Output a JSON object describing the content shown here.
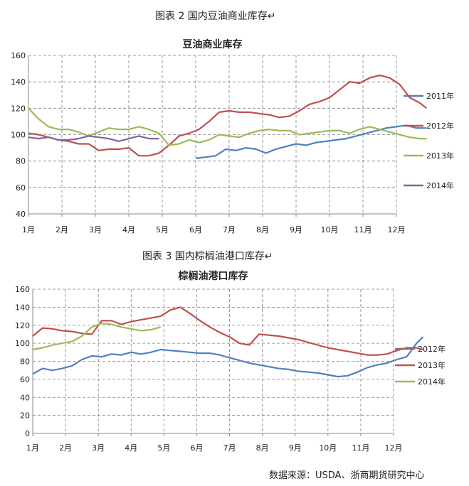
{
  "captions": {
    "figure2": "图表 2  国内豆油商业库存↵",
    "figure3": "图表 3  国内棕榈油港口库存↵",
    "source": "数据来源：USDA、浙商期货研究中心"
  },
  "colors": {
    "blue": "#4f81bd",
    "red": "#c0504d",
    "green": "#9bbb59",
    "purple": "#8064a2"
  },
  "chart_data": [
    {
      "type": "line",
      "title": "豆油商业库存",
      "categories": [
        "1月",
        "2月",
        "3月",
        "4月",
        "5月",
        "6月",
        "7月",
        "8月",
        "9月",
        "10月",
        "11月",
        "12月"
      ],
      "ylim": [
        40,
        160
      ],
      "yticks": [
        40,
        60,
        80,
        100,
        120,
        140,
        160
      ],
      "grid": true,
      "legend": "right",
      "series": [
        {
          "name": "2011年",
          "color": "#4f81bd",
          "x": [
            5.0,
            5.3,
            5.6,
            5.9,
            6.2,
            6.5,
            6.8,
            7.1,
            7.4,
            7.7,
            8.0,
            8.3,
            8.6,
            8.9,
            9.2,
            9.5,
            9.8,
            10.1,
            10.4,
            10.7,
            11.0,
            11.3,
            11.6,
            11.9
          ],
          "y": [
            82,
            83,
            84,
            89,
            88,
            90,
            89,
            86,
            89,
            91,
            93,
            92,
            94,
            95,
            96,
            97,
            99,
            101,
            103,
            105,
            106,
            107,
            105,
            105
          ]
        },
        {
          "name": "2012年",
          "color": "#c0504d",
          "x": [
            0.0,
            0.3,
            0.6,
            0.9,
            1.2,
            1.5,
            1.8,
            2.1,
            2.4,
            2.7,
            3.0,
            3.3,
            3.6,
            3.9,
            4.2,
            4.5,
            4.8,
            5.1,
            5.4,
            5.7,
            6.0,
            6.3,
            6.6,
            6.9,
            7.2,
            7.5,
            7.8,
            8.1,
            8.4,
            8.7,
            9.0,
            9.3,
            9.6,
            9.9,
            10.2,
            10.5,
            10.8,
            11.1,
            11.4,
            11.7,
            11.9
          ],
          "y": [
            101,
            100,
            98,
            96,
            95,
            93,
            93,
            88,
            89,
            89,
            90,
            84,
            84,
            86,
            92,
            99,
            101,
            104,
            110,
            117,
            118,
            117,
            117,
            116,
            115,
            113,
            114,
            118,
            123,
            125,
            128,
            134,
            140,
            139,
            143,
            145,
            143,
            138,
            128,
            124,
            120
          ]
        },
        {
          "name": "2013年",
          "color": "#9bbb59",
          "x": [
            0.0,
            0.3,
            0.6,
            0.9,
            1.2,
            1.5,
            1.8,
            2.1,
            2.4,
            2.7,
            3.0,
            3.3,
            3.6,
            3.9,
            4.2,
            4.5,
            4.8,
            5.1,
            5.4,
            5.7,
            6.0,
            6.3,
            6.6,
            6.9,
            7.2,
            7.5,
            7.8,
            8.1,
            8.4,
            8.7,
            9.0,
            9.3,
            9.6,
            9.9,
            10.2,
            10.5,
            10.8,
            11.1,
            11.4,
            11.7,
            11.9
          ],
          "y": [
            120,
            112,
            106,
            104,
            104,
            102,
            99,
            102,
            105,
            104,
            104,
            106,
            104,
            101,
            92,
            93,
            96,
            94,
            96,
            100,
            99,
            98,
            101,
            103,
            104,
            103,
            103,
            100,
            101,
            102,
            103,
            103,
            101,
            104,
            106,
            104,
            102,
            100,
            98,
            97,
            97
          ]
        },
        {
          "name": "2014年",
          "color": "#8064a2",
          "x": [
            0.0,
            0.3,
            0.6,
            0.9,
            1.2,
            1.5,
            1.8,
            2.1,
            2.4,
            2.7,
            3.0,
            3.3,
            3.6,
            3.9
          ],
          "y": [
            98,
            97,
            98,
            96,
            96,
            97,
            99,
            98,
            97,
            95,
            97,
            99,
            97,
            97
          ]
        }
      ]
    },
    {
      "type": "line",
      "title": "棕榈油港口库存",
      "categories": [
        "1月",
        "2月",
        "3月",
        "4月",
        "5月",
        "6月",
        "7月",
        "8月",
        "9月",
        "10月",
        "11月",
        "12月"
      ],
      "ylim": [
        0,
        160
      ],
      "yticks": [
        0,
        20,
        40,
        60,
        80,
        100,
        120,
        140,
        160
      ],
      "grid": true,
      "legend": "right",
      "series": [
        {
          "name": "2012年",
          "color": "#4f81bd",
          "x": [
            0.0,
            0.3,
            0.6,
            0.9,
            1.2,
            1.5,
            1.8,
            2.1,
            2.4,
            2.7,
            3.0,
            3.3,
            3.6,
            3.9,
            4.2,
            4.5,
            4.8,
            5.1,
            5.4,
            5.7,
            6.0,
            6.3,
            6.6,
            6.9,
            7.2,
            7.5,
            7.8,
            8.1,
            8.4,
            8.7,
            9.0,
            9.3,
            9.6,
            9.9,
            10.2,
            10.5,
            10.8,
            11.1,
            11.4,
            11.7,
            11.9
          ],
          "y": [
            66,
            72,
            70,
            72,
            75,
            82,
            86,
            85,
            88,
            87,
            90,
            88,
            90,
            93,
            92,
            91,
            90,
            89,
            89,
            87,
            84,
            81,
            78,
            76,
            74,
            72,
            71,
            69,
            68,
            67,
            65,
            63,
            64,
            68,
            73,
            76,
            78,
            82,
            85,
            100,
            107
          ]
        },
        {
          "name": "2013年",
          "color": "#c0504d",
          "x": [
            0.0,
            0.3,
            0.6,
            0.9,
            1.2,
            1.5,
            1.8,
            2.1,
            2.4,
            2.7,
            3.0,
            3.3,
            3.6,
            3.9,
            4.2,
            4.5,
            4.8,
            5.1,
            5.4,
            5.7,
            6.0,
            6.3,
            6.6,
            6.9,
            7.2,
            7.5,
            7.8,
            8.1,
            8.4,
            8.7,
            9.0,
            9.3,
            9.6,
            9.9,
            10.2,
            10.5,
            10.8,
            11.1,
            11.4,
            11.7,
            11.9
          ],
          "y": [
            108,
            117,
            116,
            114,
            113,
            111,
            110,
            125,
            125,
            121,
            124,
            126,
            128,
            130,
            137,
            140,
            133,
            125,
            118,
            112,
            107,
            100,
            98,
            110,
            109,
            108,
            106,
            104,
            101,
            98,
            95,
            93,
            91,
            89,
            87,
            87,
            88,
            92,
            95,
            95,
            93
          ]
        },
        {
          "name": "2014年",
          "color": "#9bbb59",
          "x": [
            0.0,
            0.3,
            0.6,
            0.9,
            1.2,
            1.5,
            1.8,
            2.1,
            2.4,
            2.7,
            3.0,
            3.3,
            3.6,
            3.9
          ],
          "y": [
            93,
            95,
            98,
            100,
            102,
            108,
            118,
            122,
            121,
            118,
            116,
            114,
            115,
            118
          ]
        }
      ]
    }
  ]
}
